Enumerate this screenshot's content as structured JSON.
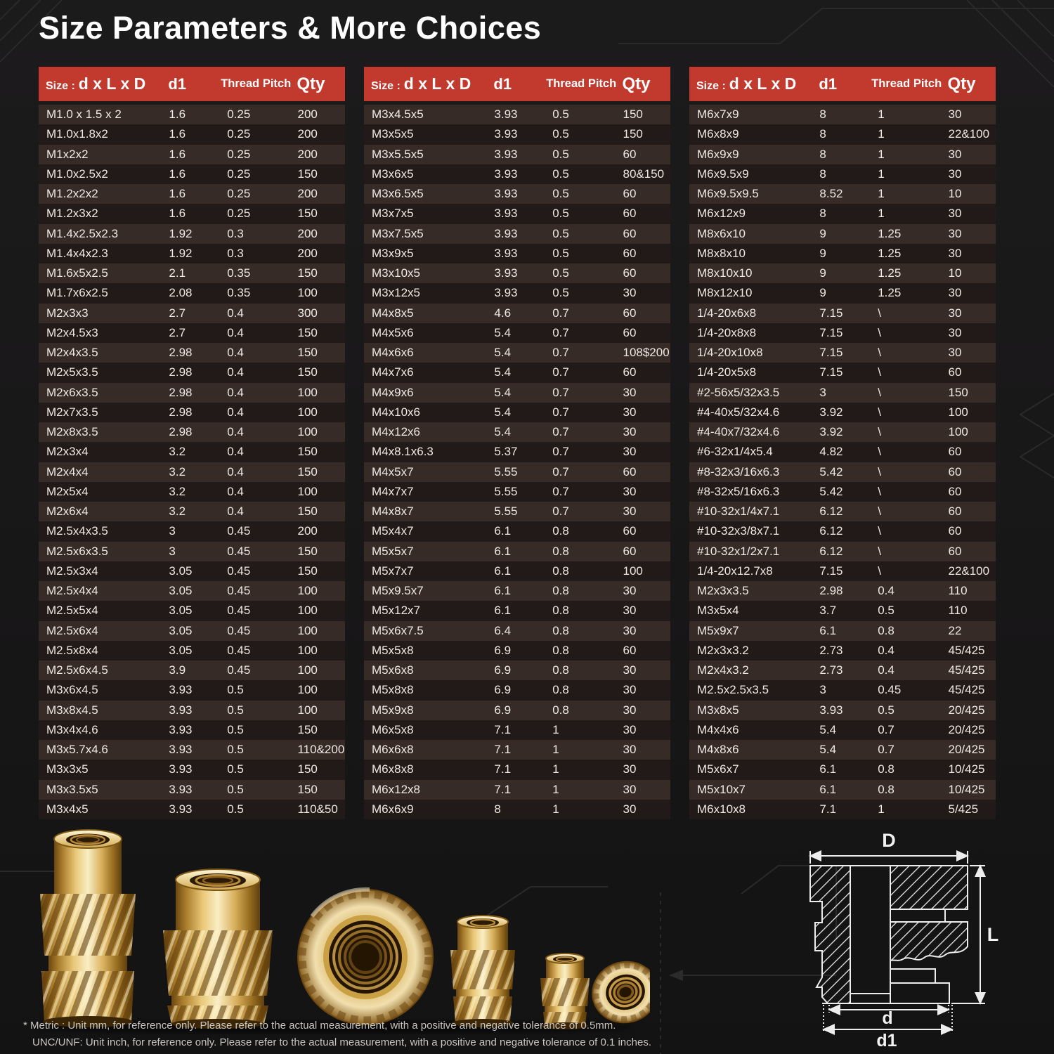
{
  "title": "Size Parameters & More Choices",
  "table_header": {
    "size_prefix": "Size :",
    "size_main": "d x L x D",
    "d1": "d1",
    "thread_pitch": "Thread Pitch",
    "qty": "Qty"
  },
  "tables": [
    {
      "rows": [
        [
          "M1.0 x 1.5 x 2",
          "1.6",
          "0.25",
          "200"
        ],
        [
          "M1.0x1.8x2",
          "1.6",
          "0.25",
          "200"
        ],
        [
          "M1x2x2",
          "1.6",
          "0.25",
          "200"
        ],
        [
          "M1.0x2.5x2",
          "1.6",
          "0.25",
          "150"
        ],
        [
          "M1.2x2x2",
          "1.6",
          "0.25",
          "200"
        ],
        [
          "M1.2x3x2",
          "1.6",
          "0.25",
          "150"
        ],
        [
          "M1.4x2.5x2.3",
          "1.92",
          "0.3",
          "200"
        ],
        [
          "M1.4x4x2.3",
          "1.92",
          "0.3",
          "200"
        ],
        [
          "M1.6x5x2.5",
          "2.1",
          "0.35",
          "150"
        ],
        [
          "M1.7x6x2.5",
          "2.08",
          "0.35",
          "100"
        ],
        [
          "M2x3x3",
          "2.7",
          "0.4",
          "300"
        ],
        [
          "M2x4.5x3",
          "2.7",
          "0.4",
          "150"
        ],
        [
          "M2x4x3.5",
          "2.98",
          "0.4",
          "150"
        ],
        [
          "M2x5x3.5",
          "2.98",
          "0.4",
          "150"
        ],
        [
          "M2x6x3.5",
          "2.98",
          "0.4",
          "100"
        ],
        [
          "M2x7x3.5",
          "2.98",
          "0.4",
          "100"
        ],
        [
          "M2x8x3.5",
          "2.98",
          "0.4",
          "100"
        ],
        [
          "M2x3x4",
          "3.2",
          "0.4",
          "150"
        ],
        [
          "M2x4x4",
          "3.2",
          "0.4",
          "150"
        ],
        [
          "M2x5x4",
          "3.2",
          "0.4",
          "100"
        ],
        [
          "M2x6x4",
          "3.2",
          "0.4",
          "150"
        ],
        [
          "M2.5x4x3.5",
          "3",
          "0.45",
          "200"
        ],
        [
          "M2.5x6x3.5",
          "3",
          "0.45",
          "150"
        ],
        [
          "M2.5x3x4",
          "3.05",
          "0.45",
          "150"
        ],
        [
          "M2.5x4x4",
          "3.05",
          "0.45",
          "100"
        ],
        [
          "M2.5x5x4",
          "3.05",
          "0.45",
          "100"
        ],
        [
          "M2.5x6x4",
          "3.05",
          "0.45",
          "100"
        ],
        [
          "M2.5x8x4",
          "3.05",
          "0.45",
          "100"
        ],
        [
          "M2.5x6x4.5",
          "3.9",
          "0.45",
          "100"
        ],
        [
          "M3x6x4.5",
          "3.93",
          "0.5",
          "100"
        ],
        [
          "M3x8x4.5",
          "3.93",
          "0.5",
          "100"
        ],
        [
          "M3x4x4.6",
          "3.93",
          "0.5",
          "150"
        ],
        [
          "M3x5.7x4.6",
          "3.93",
          "0.5",
          "110&200"
        ],
        [
          "M3x3x5",
          "3.93",
          "0.5",
          "150"
        ],
        [
          "M3x3.5x5",
          "3.93",
          "0.5",
          "150"
        ],
        [
          "M3x4x5",
          "3.93",
          "0.5",
          "110&50"
        ]
      ]
    },
    {
      "rows": [
        [
          "M3x4.5x5",
          "3.93",
          "0.5",
          "150"
        ],
        [
          "M3x5x5",
          "3.93",
          "0.5",
          "150"
        ],
        [
          "M3x5.5x5",
          "3.93",
          "0.5",
          "60"
        ],
        [
          "M3x6x5",
          "3.93",
          "0.5",
          "80&150"
        ],
        [
          "M3x6.5x5",
          "3.93",
          "0.5",
          "60"
        ],
        [
          "M3x7x5",
          "3.93",
          "0.5",
          "60"
        ],
        [
          "M3x7.5x5",
          "3.93",
          "0.5",
          "60"
        ],
        [
          "M3x9x5",
          "3.93",
          "0.5",
          "60"
        ],
        [
          "M3x10x5",
          "3.93",
          "0.5",
          "60"
        ],
        [
          "M3x12x5",
          "3.93",
          "0.5",
          "30"
        ],
        [
          "M4x8x5",
          "4.6",
          "0.7",
          "60"
        ],
        [
          "M4x5x6",
          "5.4",
          "0.7",
          "60"
        ],
        [
          "M4x6x6",
          "5.4",
          "0.7",
          "108$200"
        ],
        [
          "M4x7x6",
          "5.4",
          "0.7",
          "60"
        ],
        [
          "M4x9x6",
          "5.4",
          "0.7",
          "30"
        ],
        [
          "M4x10x6",
          "5.4",
          "0.7",
          "30"
        ],
        [
          "M4x12x6",
          "5.4",
          "0.7",
          "30"
        ],
        [
          "M4x8.1x6.3",
          "5.37",
          "0.7",
          "30"
        ],
        [
          "M4x5x7",
          "5.55",
          "0.7",
          "60"
        ],
        [
          "M4x7x7",
          "5.55",
          "0.7",
          "30"
        ],
        [
          "M4x8x7",
          "5.55",
          "0.7",
          "30"
        ],
        [
          "M5x4x7",
          "6.1",
          "0.8",
          "60"
        ],
        [
          "M5x5x7",
          "6.1",
          "0.8",
          "60"
        ],
        [
          "M5x7x7",
          "6.1",
          "0.8",
          "100"
        ],
        [
          "M5x9.5x7",
          "6.1",
          "0.8",
          "30"
        ],
        [
          "M5x12x7",
          "6.1",
          "0.8",
          "30"
        ],
        [
          "M5x6x7.5",
          "6.4",
          "0.8",
          "30"
        ],
        [
          "M5x5x8",
          "6.9",
          "0.8",
          "60"
        ],
        [
          "M5x6x8",
          "6.9",
          "0.8",
          "30"
        ],
        [
          "M5x8x8",
          "6.9",
          "0.8",
          "30"
        ],
        [
          "M5x9x8",
          "6.9",
          "0.8",
          "30"
        ],
        [
          "M6x5x8",
          "7.1",
          "1",
          "30"
        ],
        [
          "M6x6x8",
          "7.1",
          "1",
          "30"
        ],
        [
          "M6x8x8",
          "7.1",
          "1",
          "30"
        ],
        [
          "M6x12x8",
          "7.1",
          "1",
          "30"
        ],
        [
          "M6x6x9",
          "8",
          "1",
          "30"
        ]
      ]
    },
    {
      "rows": [
        [
          "M6x7x9",
          "8",
          "1",
          "30"
        ],
        [
          "M6x8x9",
          "8",
          "1",
          "22&100"
        ],
        [
          "M6x9x9",
          "8",
          "1",
          "30"
        ],
        [
          "M6x9.5x9",
          "8",
          "1",
          "30"
        ],
        [
          "M6x9.5x9.5",
          "8.52",
          "1",
          "10"
        ],
        [
          "M6x12x9",
          "8",
          "1",
          "30"
        ],
        [
          "M8x6x10",
          "9",
          "1.25",
          "30"
        ],
        [
          "M8x8x10",
          "9",
          "1.25",
          "30"
        ],
        [
          "M8x10x10",
          "9",
          "1.25",
          "10"
        ],
        [
          "M8x12x10",
          "9",
          "1.25",
          "30"
        ],
        [
          "1/4-20x6x8",
          "7.15",
          "\\",
          "30"
        ],
        [
          "1/4-20x8x8",
          "7.15",
          "\\",
          "30"
        ],
        [
          "1/4-20x10x8",
          "7.15",
          "\\",
          "30"
        ],
        [
          "1/4-20x5x8",
          "7.15",
          "\\",
          "60"
        ],
        [
          "#2-56x5/32x3.5",
          "3",
          "\\",
          "150"
        ],
        [
          "#4-40x5/32x4.6",
          "3.92",
          "\\",
          "100"
        ],
        [
          "#4-40x7/32x4.6",
          "3.92",
          "\\",
          "100"
        ],
        [
          "#6-32x1/4x5.4",
          "4.82",
          "\\",
          "60"
        ],
        [
          "#8-32x3/16x6.3",
          "5.42",
          "\\",
          "60"
        ],
        [
          "#8-32x5/16x6.3",
          "5.42",
          "\\",
          "60"
        ],
        [
          "#10-32x1/4x7.1",
          "6.12",
          "\\",
          "60"
        ],
        [
          "#10-32x3/8x7.1",
          "6.12",
          "\\",
          "60"
        ],
        [
          "#10-32x1/2x7.1",
          "6.12",
          "\\",
          "60"
        ],
        [
          "1/4-20x12.7x8",
          "7.15",
          "\\",
          "22&100"
        ],
        [
          "M2x3x3.5",
          "2.98",
          "0.4",
          "110"
        ],
        [
          "M3x5x4",
          "3.7",
          "0.5",
          "110"
        ],
        [
          "M5x9x7",
          "6.1",
          "0.8",
          "22"
        ],
        [
          "M2x3x3.2",
          "2.73",
          "0.4",
          "45/425"
        ],
        [
          "M2x4x3.2",
          "2.73",
          "0.4",
          "45/425"
        ],
        [
          "M2.5x2.5x3.5",
          "3",
          "0.45",
          "45/425"
        ],
        [
          "M3x8x5",
          "3.93",
          "0.5",
          "20/425"
        ],
        [
          "M4x4x6",
          "5.4",
          "0.7",
          "20/425"
        ],
        [
          "M4x8x6",
          "5.4",
          "0.7",
          "20/425"
        ],
        [
          "M5x6x7",
          "6.1",
          "0.8",
          "10/425"
        ],
        [
          "M5x10x7",
          "6.1",
          "0.8",
          "10/425"
        ],
        [
          "M6x10x8",
          "7.1",
          "1",
          "5/425"
        ]
      ]
    }
  ],
  "diagram": {
    "labels": {
      "D": "D",
      "L": "L",
      "d": "d",
      "d1": "d1"
    }
  },
  "footnotes": [
    "* Metric : Unit mm, for reference only. Please refer to the actual measurement, with a positive and negative tolerance of 0.5mm.",
    "UNC/UNF: Unit inch, for reference only. Please refer to the actual measurement, with a positive and negative tolerance of 0.1 inches."
  ],
  "colors": {
    "header_bg": "#c23a2e",
    "row_light": "#372b28",
    "row_dark": "#211a19",
    "page_bg": "#181718",
    "text": "#efe9e3",
    "brass": "#d9b565",
    "diagram_line": "#ededed"
  }
}
